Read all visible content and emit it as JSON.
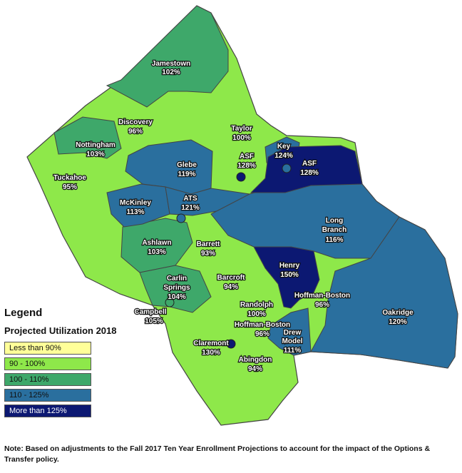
{
  "colors": {
    "lt90": "#ffff99",
    "r90_100": "#8ee84a",
    "r100_110": "#3ea86a",
    "r110_125": "#2a6f9e",
    "gt125": "#0c1872",
    "outline": "#444444"
  },
  "legend": {
    "title": "Legend",
    "subtitle": "Projected Utilization 2018",
    "items": [
      {
        "label": "Less than 90%",
        "color": "#ffff99"
      },
      {
        "label": "90 - 100%",
        "color": "#8ee84a"
      },
      {
        "label": "100 - 110%",
        "color": "#3ea86a"
      },
      {
        "label": "110 - 125%",
        "color": "#2a6f9e"
      },
      {
        "label": "More than 125%",
        "color": "#0c1872"
      }
    ]
  },
  "schools": [
    {
      "name": "Jamestown",
      "pct": "102%"
    },
    {
      "name": "Discovery",
      "pct": "96%"
    },
    {
      "name": "Taylor",
      "pct": "100%"
    },
    {
      "name": "Nottingham",
      "pct": "103%"
    },
    {
      "name": "ASF",
      "pct": "128%"
    },
    {
      "name": "Key",
      "pct": "124%"
    },
    {
      "name": "ASF",
      "pct": "128%"
    },
    {
      "name": "Glebe",
      "pct": "119%"
    },
    {
      "name": "Tuckahoe",
      "pct": "95%"
    },
    {
      "name": "ATS",
      "pct": "121%"
    },
    {
      "name": "McKinley",
      "pct": "113%"
    },
    {
      "name": "Long Branch",
      "pct": "116%"
    },
    {
      "name": "Ashlawn",
      "pct": "103%"
    },
    {
      "name": "Barrett",
      "pct": "93%"
    },
    {
      "name": "Henry",
      "pct": "150%"
    },
    {
      "name": "Carlin Springs",
      "pct": "104%"
    },
    {
      "name": "Barcroft",
      "pct": "94%"
    },
    {
      "name": "Hoffman-Boston",
      "pct": "96%"
    },
    {
      "name": "Campbell",
      "pct": "105%"
    },
    {
      "name": "Randolph",
      "pct": "100%"
    },
    {
      "name": "Oakridge",
      "pct": "120%"
    },
    {
      "name": "Hoffman-Boston",
      "pct": "96%"
    },
    {
      "name": "Drew Model",
      "pct": "111%"
    },
    {
      "name": "Claremont",
      "pct": "130%"
    },
    {
      "name": "Abingdon",
      "pct": "94%"
    }
  ],
  "note": "Note: Based on adjustments to the Fall 2017 Ten Year Enrollment Projections to account for the impact of the Options & Transfer policy."
}
